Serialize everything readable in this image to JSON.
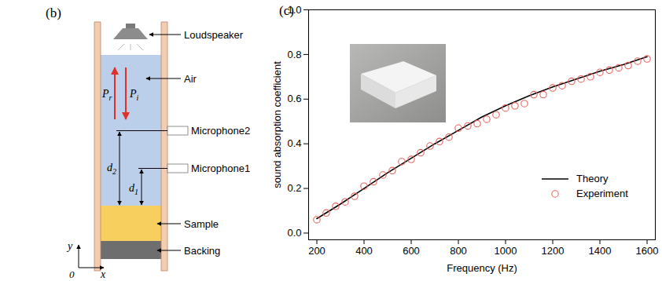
{
  "chart_data": {
    "type": "line",
    "panel_label": "(c)",
    "xlabel": "Frequency (Hz)",
    "ylabel": "sound absorption coefficient",
    "xlim": [
      165,
      1635
    ],
    "xticks": [
      200,
      400,
      600,
      800,
      1000,
      1200,
      1400,
      1600
    ],
    "ylim": [
      -0.03,
      1.0
    ],
    "yticks": [
      {
        "value": 0,
        "label": "0.0"
      },
      0.2,
      0.4,
      0.6,
      0.8,
      {
        "value": 1,
        "label": "1.0"
      }
    ],
    "grid": false,
    "legend": "lower right",
    "series": [
      {
        "name": "Theory",
        "type": "line",
        "color": "#000000",
        "line_style": "solid",
        "x": [
          200,
          300,
          400,
          500,
          600,
          700,
          800,
          900,
          1000,
          1100,
          1200,
          1300,
          1400,
          1500,
          1600
        ],
        "values": [
          0.065,
          0.13,
          0.2,
          0.27,
          0.335,
          0.4,
          0.46,
          0.52,
          0.57,
          0.615,
          0.655,
          0.69,
          0.725,
          0.755,
          0.79
        ]
      },
      {
        "name": "Experiment",
        "type": "scatter",
        "color": "#e8645a",
        "marker": "open_circle",
        "x": [
          200,
          240,
          280,
          320,
          360,
          400,
          440,
          480,
          520,
          560,
          600,
          640,
          680,
          720,
          760,
          800,
          840,
          880,
          920,
          960,
          1000,
          1040,
          1080,
          1120,
          1160,
          1200,
          1240,
          1280,
          1320,
          1360,
          1400,
          1440,
          1480,
          1520,
          1560,
          1600
        ],
        "values": [
          0.06,
          0.09,
          0.12,
          0.14,
          0.165,
          0.21,
          0.23,
          0.26,
          0.28,
          0.32,
          0.33,
          0.36,
          0.39,
          0.41,
          0.43,
          0.47,
          0.48,
          0.49,
          0.51,
          0.53,
          0.56,
          0.57,
          0.58,
          0.62,
          0.62,
          0.65,
          0.66,
          0.68,
          0.69,
          0.7,
          0.72,
          0.73,
          0.74,
          0.75,
          0.77,
          0.78
        ]
      }
    ]
  },
  "diagram": {
    "panel_label": "(b)",
    "labels": {
      "loudspeaker": "Loudspeaker",
      "air": "Air",
      "microphone2": "Microphone2",
      "microphone1": "Microphone1",
      "sample": "Sample",
      "backing": "Backing"
    },
    "waves": {
      "reflected": {
        "base": "P",
        "sub": "r"
      },
      "incident": {
        "base": "P",
        "sub": "i"
      }
    },
    "distances": {
      "d2": {
        "base": "d",
        "sub": "2"
      },
      "d1": {
        "base": "d",
        "sub": "1"
      }
    },
    "axes": {
      "y": "y",
      "x": "x",
      "origin": "0"
    }
  }
}
